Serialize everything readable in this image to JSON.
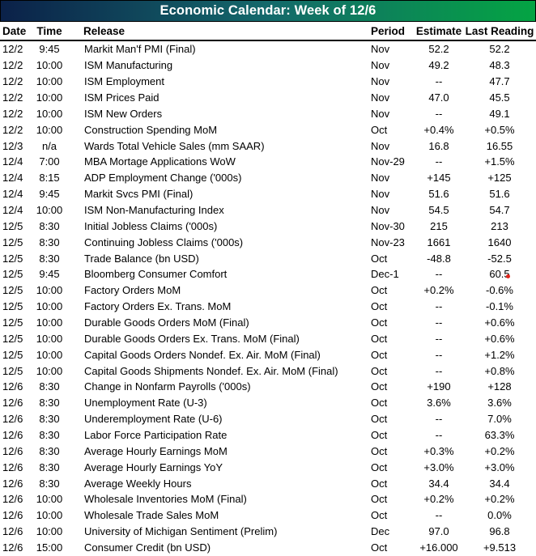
{
  "title": "Economic Calendar: Week of 12/6",
  "colors": {
    "gradient_left": "#0B2149",
    "gradient_mid": "#14696B",
    "gradient_right": "#04A443",
    "title_text": "#FFFFFF",
    "body_text": "#000000",
    "marker_red": "#E2261C"
  },
  "table": {
    "columns": [
      "Date",
      "Time",
      "Release",
      "Period",
      "Estimate",
      "Last Reading"
    ],
    "rows": [
      {
        "date": "12/2",
        "time": "9:45",
        "release": "Markit Man'f PMI (Final)",
        "period": "Nov",
        "estimate": "52.2",
        "last": "52.2"
      },
      {
        "date": "12/2",
        "time": "10:00",
        "release": "ISM Manufacturing",
        "period": "Nov",
        "estimate": "49.2",
        "last": "48.3"
      },
      {
        "date": "12/2",
        "time": "10:00",
        "release": "ISM Employment",
        "period": "Nov",
        "estimate": "--",
        "last": "47.7"
      },
      {
        "date": "12/2",
        "time": "10:00",
        "release": "ISM Prices Paid",
        "period": "Nov",
        "estimate": "47.0",
        "last": "45.5"
      },
      {
        "date": "12/2",
        "time": "10:00",
        "release": "ISM New Orders",
        "period": "Nov",
        "estimate": "--",
        "last": "49.1"
      },
      {
        "date": "12/2",
        "time": "10:00",
        "release": "Construction Spending MoM",
        "period": "Oct",
        "estimate": "+0.4%",
        "last": "+0.5%"
      },
      {
        "date": "12/3",
        "time": "n/a",
        "release": "Wards Total Vehicle Sales (mm SAAR)",
        "period": "Nov",
        "estimate": "16.8",
        "last": "16.55"
      },
      {
        "date": "12/4",
        "time": "7:00",
        "release": "MBA Mortage Applications WoW",
        "period": "Nov-29",
        "estimate": "--",
        "last": "+1.5%"
      },
      {
        "date": "12/4",
        "time": "8:15",
        "release": "ADP Employment Change ('000s)",
        "period": "Nov",
        "estimate": "+145",
        "last": "+125"
      },
      {
        "date": "12/4",
        "time": "9:45",
        "release": "Markit Svcs PMI (Final)",
        "period": "Nov",
        "estimate": "51.6",
        "last": "51.6"
      },
      {
        "date": "12/4",
        "time": "10:00",
        "release": "ISM Non-Manufacturing Index",
        "period": "Nov",
        "estimate": "54.5",
        "last": "54.7"
      },
      {
        "date": "12/5",
        "time": "8:30",
        "release": "Initial Jobless Claims ('000s)",
        "period": "Nov-30",
        "estimate": "215",
        "last": "213"
      },
      {
        "date": "12/5",
        "time": "8:30",
        "release": "Continuing Jobless Claims ('000s)",
        "period": "Nov-23",
        "estimate": "1661",
        "last": "1640"
      },
      {
        "date": "12/5",
        "time": "8:30",
        "release": "Trade Balance (bn USD)",
        "period": "Oct",
        "estimate": "-48.8",
        "last": "-52.5"
      },
      {
        "date": "12/5",
        "time": "9:45",
        "release": "Bloomberg Consumer Comfort",
        "period": "Dec-1",
        "estimate": "--",
        "last": "60.5",
        "last_marker": true
      },
      {
        "date": "12/5",
        "time": "10:00",
        "release": "Factory Orders MoM",
        "period": "Oct",
        "estimate": "+0.2%",
        "last": "-0.6%"
      },
      {
        "date": "12/5",
        "time": "10:00",
        "release": "Factory Orders Ex. Trans. MoM",
        "period": "Oct",
        "estimate": "--",
        "last": "-0.1%"
      },
      {
        "date": "12/5",
        "time": "10:00",
        "release": "Durable Goods Orders MoM (Final)",
        "period": "Oct",
        "estimate": "--",
        "last": "+0.6%"
      },
      {
        "date": "12/5",
        "time": "10:00",
        "release": "Durable Goods Orders Ex. Trans. MoM (Final)",
        "period": "Oct",
        "estimate": "--",
        "last": "+0.6%"
      },
      {
        "date": "12/5",
        "time": "10:00",
        "release": "Capital Goods Orders Nondef. Ex. Air. MoM (Final)",
        "period": "Oct",
        "estimate": "--",
        "last": "+1.2%"
      },
      {
        "date": "12/5",
        "time": "10:00",
        "release": "Capital Goods Shipments Nondef. Ex. Air. MoM (Final)",
        "period": "Oct",
        "estimate": "--",
        "last": "+0.8%"
      },
      {
        "date": "12/6",
        "time": "8:30",
        "release": "Change in Nonfarm Payrolls ('000s)",
        "period": "Oct",
        "estimate": "+190",
        "last": "+128"
      },
      {
        "date": "12/6",
        "time": "8:30",
        "release": "Unemployment Rate (U-3)",
        "period": "Oct",
        "estimate": "3.6%",
        "last": "3.6%"
      },
      {
        "date": "12/6",
        "time": "8:30",
        "release": "Underemployment Rate (U-6)",
        "period": "Oct",
        "estimate": "--",
        "last": "7.0%"
      },
      {
        "date": "12/6",
        "time": "8:30",
        "release": "Labor Force Participation Rate",
        "period": "Oct",
        "estimate": "--",
        "last": "63.3%"
      },
      {
        "date": "12/6",
        "time": "8:30",
        "release": "Average Hourly Earnings MoM",
        "period": "Oct",
        "estimate": "+0.3%",
        "last": "+0.2%"
      },
      {
        "date": "12/6",
        "time": "8:30",
        "release": "Average Hourly Earnings YoY",
        "period": "Oct",
        "estimate": "+3.0%",
        "last": "+3.0%"
      },
      {
        "date": "12/6",
        "time": "8:30",
        "release": "Average Weekly Hours",
        "period": "Oct",
        "estimate": "34.4",
        "last": "34.4"
      },
      {
        "date": "12/6",
        "time": "10:00",
        "release": "Wholesale Inventories MoM (Final)",
        "period": "Oct",
        "estimate": "+0.2%",
        "last": "+0.2%"
      },
      {
        "date": "12/6",
        "time": "10:00",
        "release": "Wholesale Trade Sales MoM",
        "period": "Oct",
        "estimate": "--",
        "last": "0.0%"
      },
      {
        "date": "12/6",
        "time": "10:00",
        "release": "University of Michigan Sentiment (Prelim)",
        "period": "Dec",
        "estimate": "97.0",
        "last": "96.8"
      },
      {
        "date": "12/6",
        "time": "15:00",
        "release": "Consumer Credit (bn USD)",
        "period": "Oct",
        "estimate": "+16.000",
        "last": "+9.513"
      }
    ]
  }
}
